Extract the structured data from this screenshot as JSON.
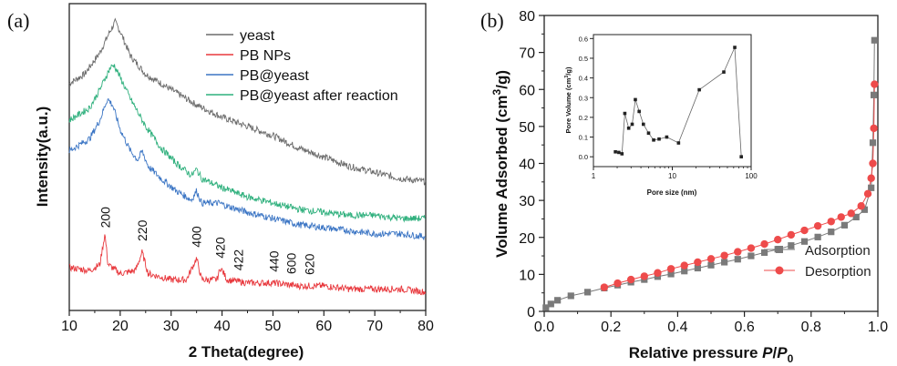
{
  "panels": [
    {
      "id": "a",
      "label": "(a)",
      "chart_data": {
        "type": "line",
        "title": "",
        "xlabel": "2 Theta(degree)",
        "ylabel": "Intensity(a.u.)",
        "xlim": [
          10,
          80
        ],
        "xticks": [
          10,
          20,
          30,
          40,
          50,
          60,
          70,
          80
        ],
        "y_tick_labels": false,
        "legend": "top-right",
        "series": [
          {
            "name": "yeast",
            "color": "#6b6b6b",
            "points": [
              [
                10,
                0.74
              ],
              [
                13,
                0.77
              ],
              [
                16,
                0.84
              ],
              [
                18,
                0.91
              ],
              [
                19,
                0.94
              ],
              [
                20,
                0.91
              ],
              [
                22,
                0.83
              ],
              [
                25,
                0.77
              ],
              [
                30,
                0.72
              ],
              [
                35,
                0.67
              ],
              [
                40,
                0.63
              ],
              [
                45,
                0.6
              ],
              [
                50,
                0.57
              ],
              [
                55,
                0.53
              ],
              [
                60,
                0.5
              ],
              [
                65,
                0.47
              ],
              [
                70,
                0.45
              ],
              [
                75,
                0.43
              ],
              [
                80,
                0.42
              ]
            ]
          },
          {
            "name": "PB NPs",
            "color": "#e8383d",
            "points": [
              [
                10,
                0.14
              ],
              [
                14,
                0.13
              ],
              [
                16,
                0.15
              ],
              [
                17,
                0.25
              ],
              [
                17.6,
                0.15
              ],
              [
                20,
                0.12
              ],
              [
                23,
                0.13
              ],
              [
                24.3,
                0.19
              ],
              [
                25.5,
                0.12
              ],
              [
                30,
                0.1
              ],
              [
                33,
                0.1
              ],
              [
                35,
                0.17
              ],
              [
                36,
                0.1
              ],
              [
                39,
                0.1
              ],
              [
                39.7,
                0.14
              ],
              [
                41,
                0.1
              ],
              [
                45,
                0.09
              ],
              [
                50,
                0.09
              ],
              [
                55,
                0.08
              ],
              [
                60,
                0.08
              ],
              [
                65,
                0.07
              ],
              [
                70,
                0.07
              ],
              [
                75,
                0.07
              ],
              [
                80,
                0.06
              ]
            ]
          },
          {
            "name": "PB@yeast",
            "color": "#3b75c4",
            "points": [
              [
                10,
                0.52
              ],
              [
                14,
                0.56
              ],
              [
                16,
                0.62
              ],
              [
                17.5,
                0.69
              ],
              [
                18.5,
                0.67
              ],
              [
                20,
                0.59
              ],
              [
                22,
                0.52
              ],
              [
                23.5,
                0.49
              ],
              [
                24.3,
                0.52
              ],
              [
                25.5,
                0.47
              ],
              [
                28,
                0.43
              ],
              [
                31,
                0.39
              ],
              [
                34,
                0.36
              ],
              [
                35,
                0.39
              ],
              [
                36,
                0.35
              ],
              [
                39.5,
                0.35
              ],
              [
                41,
                0.34
              ],
              [
                45,
                0.32
              ],
              [
                50,
                0.3
              ],
              [
                55,
                0.28
              ],
              [
                60,
                0.27
              ],
              [
                65,
                0.26
              ],
              [
                70,
                0.25
              ],
              [
                75,
                0.25
              ],
              [
                80,
                0.24
              ]
            ]
          },
          {
            "name": "PB@yeast after reaction",
            "color": "#2fb07d",
            "points": [
              [
                10,
                0.62
              ],
              [
                14,
                0.66
              ],
              [
                16,
                0.72
              ],
              [
                18,
                0.79
              ],
              [
                18.8,
                0.8
              ],
              [
                20,
                0.76
              ],
              [
                22,
                0.69
              ],
              [
                25,
                0.6
              ],
              [
                28,
                0.53
              ],
              [
                31,
                0.48
              ],
              [
                34,
                0.44
              ],
              [
                35,
                0.46
              ],
              [
                36,
                0.43
              ],
              [
                40,
                0.4
              ],
              [
                45,
                0.37
              ],
              [
                50,
                0.35
              ],
              [
                55,
                0.33
              ],
              [
                60,
                0.32
              ],
              [
                65,
                0.31
              ],
              [
                70,
                0.31
              ],
              [
                75,
                0.3
              ],
              [
                80,
                0.3
              ]
            ]
          }
        ],
        "peak_labels": [
          {
            "text": "200",
            "x": 17.1
          },
          {
            "text": "220",
            "x": 24.3
          },
          {
            "text": "400",
            "x": 35.0
          },
          {
            "text": "420",
            "x": 39.6
          },
          {
            "text": "422",
            "x": 43.2
          },
          {
            "text": "440",
            "x": 50.2
          },
          {
            "text": "600",
            "x": 53.6
          },
          {
            "text": "620",
            "x": 57.2
          }
        ]
      }
    },
    {
      "id": "b",
      "label": "(b)",
      "chart_data": {
        "type": "line",
        "title": "",
        "xlabel": "Relative pressure P/P0",
        "xlabel_parts": {
          "text": "Relative pressure ",
          "p": "P",
          "slash": "/",
          "p0": "P",
          "sub": "0"
        },
        "ylabel": "Volume Adsorbed (cm3/g)",
        "ylabel_parts": {
          "pre": "Volume Adsorbed (cm",
          "sup": "3",
          "post": "/g)"
        },
        "xlim": [
          0.0,
          1.0
        ],
        "ylim": [
          0,
          80
        ],
        "xticks": [
          0.0,
          0.2,
          0.4,
          0.6,
          0.8,
          1.0
        ],
        "xtick_labels": [
          "0.0",
          "0.2",
          "0.4",
          "0.6",
          "0.8",
          "1.0"
        ],
        "yticks": [
          0,
          10,
          20,
          30,
          40,
          50,
          60,
          70,
          80
        ],
        "legend": "bottom-right",
        "series": [
          {
            "name": "Adsorption",
            "color": "#7a7a7a",
            "marker": "square",
            "points": [
              [
                0.005,
                1.0
              ],
              [
                0.02,
                2.0
              ],
              [
                0.04,
                3.0
              ],
              [
                0.08,
                4.2
              ],
              [
                0.13,
                5.2
              ],
              [
                0.18,
                6.3
              ],
              [
                0.22,
                7.1
              ],
              [
                0.26,
                7.9
              ],
              [
                0.3,
                8.6
              ],
              [
                0.34,
                9.4
              ],
              [
                0.38,
                10.1
              ],
              [
                0.42,
                10.9
              ],
              [
                0.46,
                11.7
              ],
              [
                0.5,
                12.5
              ],
              [
                0.54,
                13.3
              ],
              [
                0.58,
                14.1
              ],
              [
                0.62,
                15.0
              ],
              [
                0.66,
                15.9
              ],
              [
                0.7,
                16.8
              ],
              [
                0.74,
                17.8
              ],
              [
                0.78,
                18.9
              ],
              [
                0.82,
                20.1
              ],
              [
                0.86,
                21.5
              ],
              [
                0.9,
                23.3
              ],
              [
                0.935,
                25.5
              ],
              [
                0.96,
                27.5
              ],
              [
                0.98,
                33.4
              ],
              [
                0.985,
                45.6
              ],
              [
                0.988,
                58.5
              ],
              [
                0.99,
                73.3
              ]
            ]
          },
          {
            "name": "Desorption",
            "color": "#ee4b4b",
            "marker": "circle",
            "points": [
              [
                0.99,
                61.4
              ],
              [
                0.988,
                49.5
              ],
              [
                0.985,
                40.0
              ],
              [
                0.98,
                36.0
              ],
              [
                0.97,
                31.8
              ],
              [
                0.95,
                28.5
              ],
              [
                0.92,
                26.5
              ],
              [
                0.89,
                25.5
              ],
              [
                0.86,
                24.3
              ],
              [
                0.82,
                23.1
              ],
              [
                0.78,
                21.9
              ],
              [
                0.74,
                20.7
              ],
              [
                0.7,
                19.4
              ],
              [
                0.66,
                18.2
              ],
              [
                0.62,
                17.1
              ],
              [
                0.58,
                16.1
              ],
              [
                0.54,
                15.1
              ],
              [
                0.5,
                14.2
              ],
              [
                0.46,
                13.3
              ],
              [
                0.42,
                12.4
              ],
              [
                0.38,
                11.5
              ],
              [
                0.34,
                10.4
              ],
              [
                0.3,
                9.5
              ],
              [
                0.26,
                8.6
              ],
              [
                0.22,
                7.6
              ],
              [
                0.18,
                6.5
              ]
            ]
          }
        ],
        "inset": {
          "type": "line",
          "xlabel": "Pore size (nm)",
          "ylabel": "Pore Volume (cm3/g)",
          "ylabel_parts": {
            "pre": "Pore Volume (cm",
            "sup": "3",
            "post": "/g)"
          },
          "xscale": "log",
          "xlim": [
            1,
            100
          ],
          "ylim": [
            -0.05,
            0.62
          ],
          "xtick_labels": [
            "1",
            "10",
            "100"
          ],
          "yticks": [
            0.0,
            0.1,
            0.2,
            0.3,
            0.4,
            0.5,
            0.6
          ],
          "ytick_labels": [
            "0.0",
            "0.1",
            "0.2",
            "0.3",
            "0.4",
            "0.5",
            "0.6"
          ],
          "series": [
            {
              "name": "",
              "color": "#222222",
              "marker": "square",
              "points": [
                [
                  1.9,
                  0.025
                ],
                [
                  2.1,
                  0.022
                ],
                [
                  2.3,
                  0.015
                ],
                [
                  2.5,
                  0.22
                ],
                [
                  2.8,
                  0.145
                ],
                [
                  3.1,
                  0.165
                ],
                [
                  3.4,
                  0.29
                ],
                [
                  3.8,
                  0.23
                ],
                [
                  4.3,
                  0.165
                ],
                [
                  5.0,
                  0.12
                ],
                [
                  5.8,
                  0.085
                ],
                [
                  6.8,
                  0.09
                ],
                [
                  8.5,
                  0.1
                ],
                [
                  12,
                  0.07
                ],
                [
                  22,
                  0.34
                ],
                [
                  45,
                  0.43
                ],
                [
                  62,
                  0.555
                ],
                [
                  75,
                  0.0
                ]
              ]
            }
          ]
        }
      }
    }
  ]
}
